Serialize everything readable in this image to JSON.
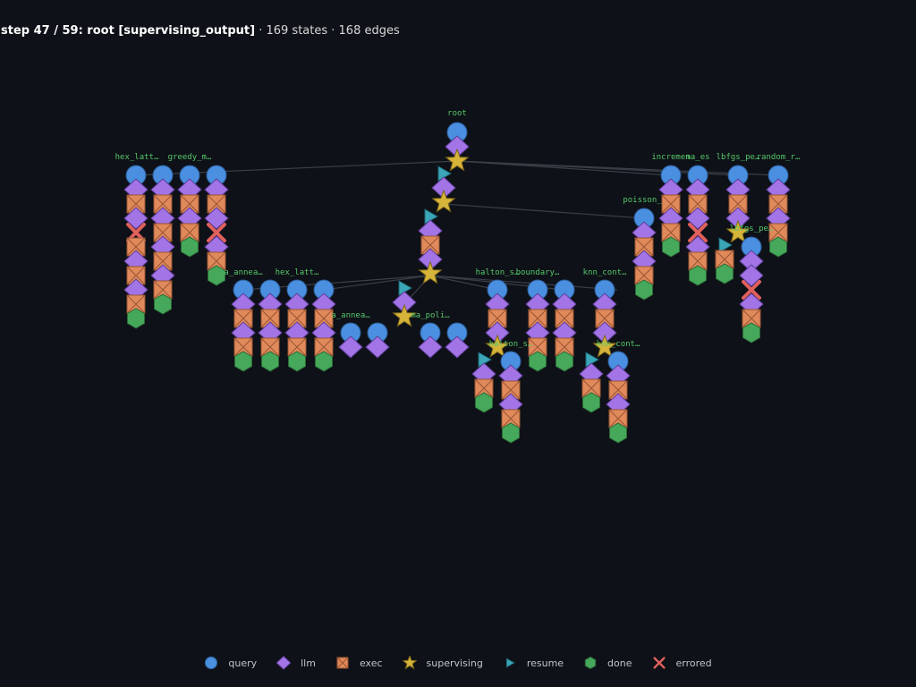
{
  "header": {
    "step_text": "step 47 / 59: root [supervising_output]",
    "stats_text": " · 169 states · 168 edges"
  },
  "colors": {
    "background": "#0e1117",
    "query": "#4a8fe0",
    "llm": "#a274e6",
    "exec": "#e0895a",
    "supervising": "#d6b43a",
    "resume": "#3aa6b8",
    "done": "#46a85a",
    "errored": "#e0605c",
    "label": "#56c86a",
    "edge": "#3a3f48"
  },
  "legend": [
    {
      "type": "query",
      "label": "query"
    },
    {
      "type": "llm",
      "label": "llm"
    },
    {
      "type": "exec",
      "label": "exec"
    },
    {
      "type": "supervising",
      "label": "supervising"
    },
    {
      "type": "resume",
      "label": "resume"
    },
    {
      "type": "done",
      "label": "done"
    },
    {
      "type": "errored",
      "label": "errored"
    }
  ],
  "graph": {
    "labels": [
      {
        "id": "lbl-root",
        "text": "root"
      },
      {
        "id": "lbl-hex1",
        "text": "hex_latt…"
      },
      {
        "id": "lbl-greedy",
        "text": "greedy_m…"
      },
      {
        "id": "lbl-anneal1",
        "text": "a_annea…"
      },
      {
        "id": "lbl-hex2",
        "text": "hex_latt…"
      },
      {
        "id": "lbl-anneal2",
        "text": "a_annea…"
      },
      {
        "id": "lbl-cmapoli",
        "text": "ma_poli…"
      },
      {
        "id": "lbl-halton1",
        "text": "halton_s…"
      },
      {
        "id": "lbl-boundary",
        "text": "boundary…"
      },
      {
        "id": "lbl-halton2",
        "text": "halton_s…"
      },
      {
        "id": "lbl-knn1",
        "text": "knn_cont…"
      },
      {
        "id": "lbl-knn2",
        "text": "knn_cont…"
      },
      {
        "id": "lbl-poisson",
        "text": "poisson_"
      },
      {
        "id": "lbl-increment",
        "text": "incremen"
      },
      {
        "id": "lbl-cmaes",
        "text": "ma_es"
      },
      {
        "id": "lbl-lbfgs1",
        "text": "lbfgs_pe…"
      },
      {
        "id": "lbl-random",
        "text": "random_r…"
      },
      {
        "id": "lbl-lbfgs2",
        "text": "lbfgs_pe…"
      }
    ]
  }
}
